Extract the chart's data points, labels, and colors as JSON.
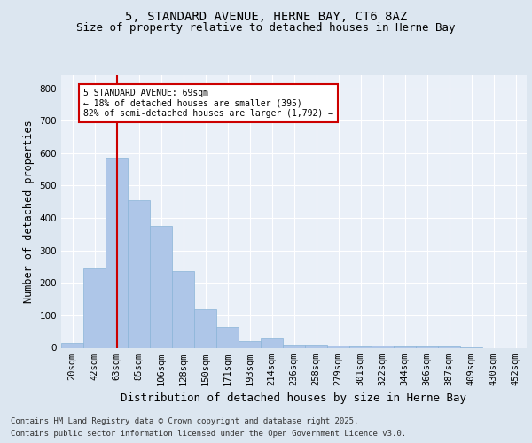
{
  "title_line1": "5, STANDARD AVENUE, HERNE BAY, CT6 8AZ",
  "title_line2": "Size of property relative to detached houses in Herne Bay",
  "xlabel": "Distribution of detached houses by size in Herne Bay",
  "ylabel": "Number of detached properties",
  "categories": [
    "20sqm",
    "42sqm",
    "63sqm",
    "85sqm",
    "106sqm",
    "128sqm",
    "150sqm",
    "171sqm",
    "193sqm",
    "214sqm",
    "236sqm",
    "258sqm",
    "279sqm",
    "301sqm",
    "322sqm",
    "344sqm",
    "366sqm",
    "387sqm",
    "409sqm",
    "430sqm",
    "452sqm"
  ],
  "values": [
    15,
    245,
    585,
    455,
    375,
    235,
    120,
    65,
    20,
    30,
    10,
    10,
    7,
    5,
    7,
    3,
    3,
    3,
    1,
    0,
    0
  ],
  "bar_color": "#aec6e8",
  "bar_edge_color": "#8ab4d8",
  "red_line_index": 2,
  "annotation_text": "5 STANDARD AVENUE: 69sqm\n← 18% of detached houses are smaller (395)\n82% of semi-detached houses are larger (1,792) →",
  "annotation_box_color": "#ffffff",
  "annotation_box_edge_color": "#cc0000",
  "footer_line1": "Contains HM Land Registry data © Crown copyright and database right 2025.",
  "footer_line2": "Contains public sector information licensed under the Open Government Licence v3.0.",
  "ylim": [
    0,
    840
  ],
  "yticks": [
    0,
    100,
    200,
    300,
    400,
    500,
    600,
    700,
    800
  ],
  "bg_color": "#dce6f0",
  "plot_bg_color": "#eaf0f8",
  "grid_color": "#ffffff",
  "title_fontsize": 10,
  "subtitle_fontsize": 9,
  "axis_label_fontsize": 8.5,
  "tick_fontsize": 7.5,
  "footer_fontsize": 6.5
}
